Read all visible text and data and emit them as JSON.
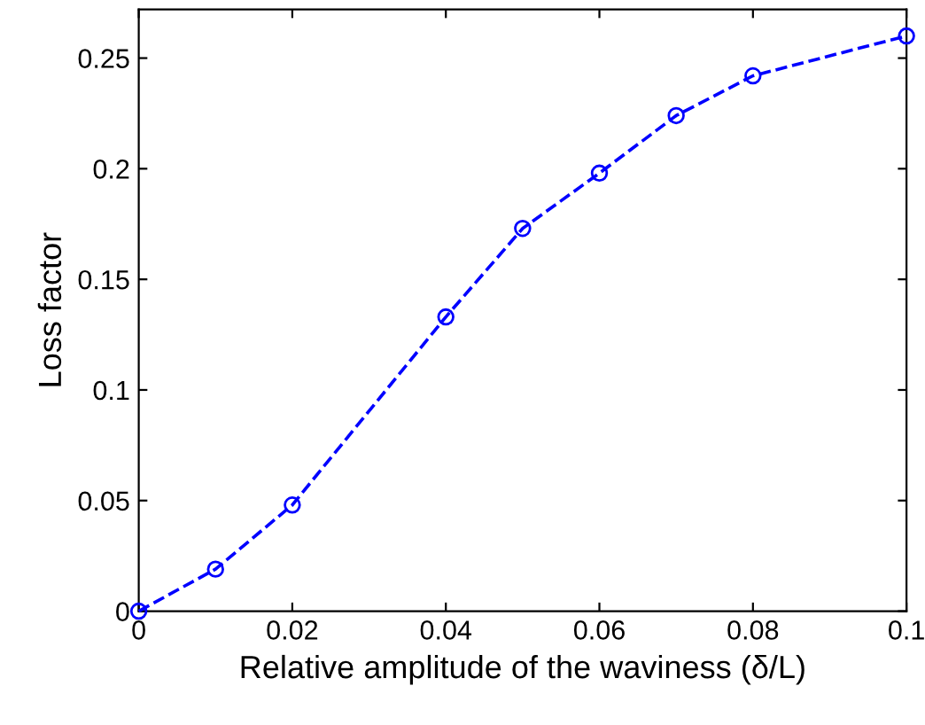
{
  "chart_data": {
    "type": "line",
    "xlabel": "Relative amplitude of the waviness (δ/L)",
    "ylabel": "Loss factor",
    "x": [
      0,
      0.01,
      0.02,
      0.04,
      0.05,
      0.06,
      0.07,
      0.08,
      0.1
    ],
    "series": [
      {
        "color": "#0000ff",
        "values": [
          0,
          0.019,
          0.048,
          0.133,
          0.173,
          0.198,
          0.224,
          0.242,
          0.26
        ]
      }
    ],
    "xlim": [
      0,
      0.1
    ],
    "ylim": [
      0,
      0.272
    ],
    "xticks": [
      0,
      0.02,
      0.04,
      0.06,
      0.08,
      0.1
    ],
    "yticks": [
      0,
      0.05,
      0.1,
      0.15,
      0.2,
      0.25
    ],
    "marker": "circle",
    "line_style": "dashed",
    "grid": false,
    "legend": false
  }
}
